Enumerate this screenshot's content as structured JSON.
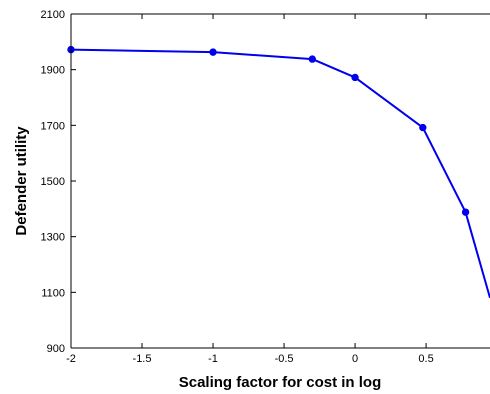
{
  "chart_data": {
    "type": "line",
    "title": "",
    "xlabel": "Scaling factor for cost in log",
    "ylabel": "Defender utility",
    "xlim": [
      -2,
      0.95
    ],
    "ylim": [
      900,
      2100
    ],
    "xticks": [
      -2,
      -1.5,
      -1,
      -0.5,
      0,
      0.5
    ],
    "xtick_labels": [
      "-2",
      "-1.5",
      "-1",
      "-0.5",
      "0",
      "0.5"
    ],
    "yticks": [
      900,
      1100,
      1300,
      1500,
      1700,
      1900,
      2100
    ],
    "ytick_labels": [
      "900",
      "1100",
      "1300",
      "1500",
      "1700",
      "1900",
      "2100"
    ],
    "grid": false,
    "series": [
      {
        "color": "#0000ee",
        "marker": "circle",
        "x": [
          -2,
          -1,
          -0.301,
          0,
          0.477,
          0.778,
          0.95
        ],
        "y": [
          1972,
          1963,
          1938,
          1872,
          1692,
          1388,
          1080
        ]
      }
    ],
    "marker_count": 6
  }
}
